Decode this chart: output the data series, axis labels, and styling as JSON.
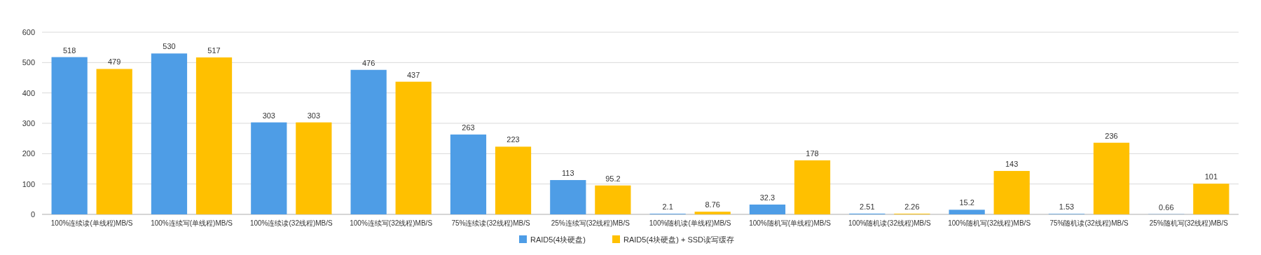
{
  "chart_data": {
    "type": "bar",
    "categories": [
      "100%连续读(单线程)MB/S",
      "100%连续写(单线程)MB/S",
      "100%连续读(32线程)MB/S",
      "100%连续写(32线程)MB/S",
      "75%连续读(32线程)MB/S",
      "25%连续写(32线程)MB/S",
      "100%随机读(单线程)MB/S",
      "100%随机写(单线程)MB/S",
      "100%随机读(32线程)MB/S",
      "100%随机写(32线程)MB/S",
      "75%随机读(32线程)MB/S",
      "25%随机写(32线程)MB/S"
    ],
    "series": [
      {
        "name": "RAID5(4块硬盘)",
        "color": "#4e9de6",
        "values": [
          518,
          530,
          303,
          476,
          263,
          113,
          2.1,
          32.3,
          2.51,
          15.2,
          1.53,
          0.66
        ]
      },
      {
        "name": "RAID5(4块硬盘) + SSD读写缓存",
        "color": "#ffc000",
        "values": [
          479,
          517,
          303,
          437,
          223,
          95.2,
          8.76,
          178,
          2.26,
          143,
          236,
          101
        ]
      }
    ],
    "ylim": [
      0,
      600
    ],
    "yticks": [
      0,
      100,
      200,
      300,
      400,
      500,
      600
    ],
    "grid": "y",
    "legend": "bottom",
    "data_labels": true
  }
}
